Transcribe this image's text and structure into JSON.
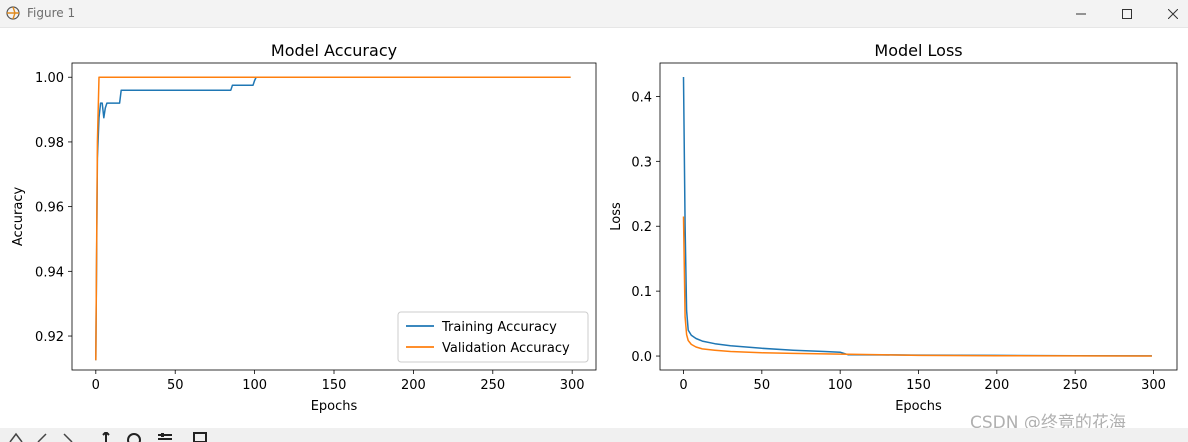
{
  "window": {
    "title": "Figure 1"
  },
  "watermark": "CSDN @终竟的花海",
  "chart_data": [
    {
      "type": "line",
      "title": "Model Accuracy",
      "xlabel": "Epochs",
      "ylabel": "Accuracy",
      "xlim": [
        -15,
        315
      ],
      "ylim": [
        0.9095,
        1.0044
      ],
      "xticks": [
        0,
        50,
        100,
        150,
        200,
        250,
        300
      ],
      "yticks": [
        0.92,
        0.94,
        0.96,
        0.98,
        1.0
      ],
      "ytick_labels": [
        "0.92",
        "0.94",
        "0.96",
        "0.98",
        "1.00"
      ],
      "legend": {
        "position": "lower-right"
      },
      "series": [
        {
          "name": "Training Accuracy",
          "color": "#1f77b4",
          "x": [
            0,
            1,
            2,
            3,
            4,
            5,
            6,
            7,
            8,
            9,
            10,
            11,
            14,
            15,
            16,
            17,
            30,
            50,
            70,
            85,
            86,
            90,
            98,
            99,
            100,
            101,
            150,
            200,
            250,
            299
          ],
          "y": [
            0.9125,
            0.975,
            0.9875,
            0.992,
            0.992,
            0.9875,
            0.9905,
            0.992,
            0.992,
            0.992,
            0.992,
            0.992,
            0.992,
            0.992,
            0.996,
            0.996,
            0.996,
            0.996,
            0.996,
            0.996,
            0.9975,
            0.9975,
            0.9975,
            0.9975,
            0.999,
            1.0,
            1.0,
            1.0,
            1.0,
            1.0
          ]
        },
        {
          "name": "Validation Accuracy",
          "color": "#ff7f0e",
          "x": [
            0,
            1,
            2,
            50,
            100,
            150,
            200,
            250,
            299
          ],
          "y": [
            0.9125,
            0.98,
            1.0,
            1.0,
            1.0,
            1.0,
            1.0,
            1.0,
            1.0
          ]
        }
      ]
    },
    {
      "type": "line",
      "title": "Model Loss",
      "xlabel": "Epochs",
      "ylabel": "Loss",
      "xlim": [
        -15,
        315
      ],
      "ylim": [
        -0.0215,
        0.4515
      ],
      "xticks": [
        0,
        50,
        100,
        150,
        200,
        250,
        300
      ],
      "yticks": [
        0.0,
        0.1,
        0.2,
        0.3,
        0.4
      ],
      "ytick_labels": [
        "0.0",
        "0.1",
        "0.2",
        "0.3",
        "0.4"
      ],
      "series": [
        {
          "name": "Training Accuracy",
          "color": "#1f77b4",
          "x": [
            0,
            1,
            2,
            3,
            5,
            8,
            12,
            20,
            30,
            50,
            70,
            90,
            100,
            105,
            150,
            200,
            250,
            299
          ],
          "y": [
            0.43,
            0.2,
            0.07,
            0.04,
            0.032,
            0.027,
            0.023,
            0.019,
            0.016,
            0.012,
            0.009,
            0.007,
            0.006,
            0.002,
            0.0015,
            0.001,
            0.0005,
            0.0003
          ]
        },
        {
          "name": "Validation Accuracy",
          "color": "#ff7f0e",
          "x": [
            0,
            1,
            2,
            3,
            5,
            8,
            12,
            20,
            30,
            50,
            70,
            100,
            150,
            200,
            250,
            299
          ],
          "y": [
            0.215,
            0.06,
            0.033,
            0.024,
            0.018,
            0.014,
            0.011,
            0.009,
            0.007,
            0.005,
            0.004,
            0.003,
            0.001,
            0.0005,
            0.0002,
            0.0001
          ]
        }
      ]
    }
  ]
}
